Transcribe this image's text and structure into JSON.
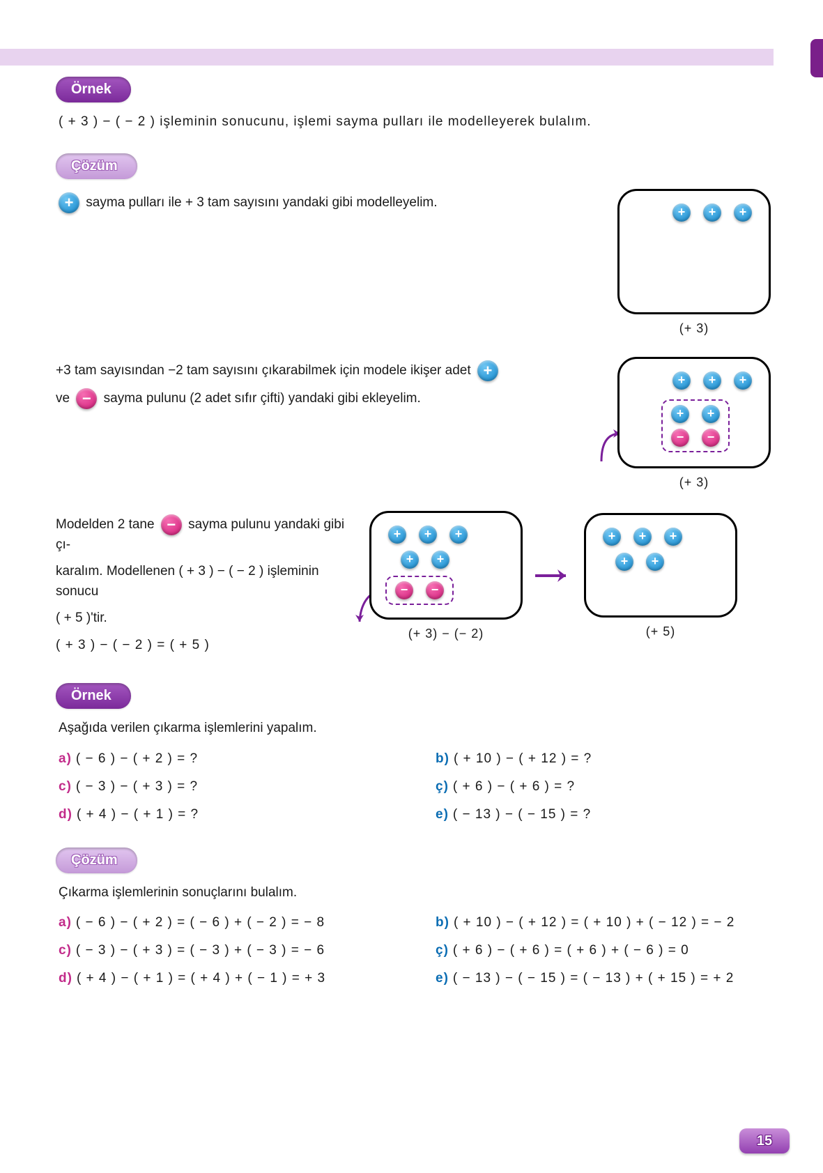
{
  "colors": {
    "accent": "#7a1f8a",
    "topbar": "#e8d3ef",
    "plusChip": "#0f86cc",
    "minusChip": "#d01876",
    "labelPink": "#c22b8a",
    "labelBlue": "#0b6db3"
  },
  "tags": {
    "ornek": "Örnek",
    "cozum": "Çözüm"
  },
  "example1": {
    "prompt": "( + 3 ) − ( − 2 ) işleminin sonucunu, işlemi sayma pulları ile modelleyerek bulalım."
  },
  "step1": {
    "text": "sayma pulları ile + 3 tam sayısını yandaki gibi modelleyelim.",
    "boxLabel": "(+ 3)"
  },
  "step2": {
    "line1": "+3 tam sayısından −2 tam sayısını çıkarabilmek için modele ikişer adet",
    "line2": "sayma pulunu (2 adet sıfır çifti) yandaki gibi ekleyelim.",
    "boxLabel": "(+ 3)",
    "connector": "ve"
  },
  "step3": {
    "line1a": "Modelden 2 tane",
    "line1b": "sayma pulunu yandaki gibi çı-",
    "line2": "karalım. Modellenen ( + 3 ) − ( − 2 ) işleminin sonucu",
    "line3": "( + 5 )'tir.",
    "eq": "( + 3 ) − ( − 2 ) = ( + 5 )",
    "boxLabelL": "(+ 3) − (− 2)",
    "boxLabelR": "(+ 5)"
  },
  "example2": {
    "prompt": "Aşağıda verilen çıkarma işlemlerini yapalım.",
    "items": [
      {
        "l": "a)",
        "t": "( − 6 ) − ( + 2 ) = ?"
      },
      {
        "l": "b)",
        "t": "( + 10 ) − ( + 12 ) = ?"
      },
      {
        "l": "c)",
        "t": "( − 3 ) − ( + 3 ) = ?"
      },
      {
        "l": "ç)",
        "t": "( + 6 ) − ( + 6 ) = ?"
      },
      {
        "l": "d)",
        "t": "( + 4 ) − ( + 1 ) = ?"
      },
      {
        "l": "e)",
        "t": "( − 13 ) − ( − 15 ) = ?"
      }
    ]
  },
  "solution2": {
    "prompt": "Çıkarma işlemlerinin sonuçlarını bulalım.",
    "items": [
      {
        "l": "a)",
        "t": "( − 6 ) − ( + 2 ) = ( − 6 ) + ( − 2 ) = − 8"
      },
      {
        "l": "b)",
        "t": "( + 10 ) − ( + 12 ) = ( + 10 ) + ( − 12 ) = − 2"
      },
      {
        "l": "c)",
        "t": "( − 3 ) − ( + 3 ) = ( − 3 ) + ( − 3 ) = − 6"
      },
      {
        "l": "ç)",
        "t": "( + 6 ) − ( + 6 ) = ( + 6 ) + ( − 6 ) = 0"
      },
      {
        "l": "d)",
        "t": "( + 4 ) − ( + 1 ) = ( + 4 ) + ( − 1 ) = + 3"
      },
      {
        "l": "e)",
        "t": "( − 13 ) − ( − 15 ) = ( − 13 ) + ( + 15 ) = + 2"
      }
    ]
  },
  "pageNumber": "15",
  "diagrams": {
    "box1": {
      "rows": [
        [
          "+",
          "+",
          "+"
        ]
      ]
    },
    "box2": {
      "rows": [
        [
          "+",
          "+",
          "+"
        ]
      ],
      "zeroPair": {
        "plus": [
          "+",
          "+"
        ],
        "minus": [
          "−",
          "−"
        ]
      }
    },
    "box3L": {
      "rows": [
        [
          "+",
          "+",
          "+"
        ],
        [
          "+",
          "+"
        ]
      ],
      "removed": [
        "−",
        "−"
      ]
    },
    "box3R": {
      "rows": [
        [
          "+",
          "+",
          "+"
        ],
        [
          "+",
          "+"
        ]
      ]
    }
  }
}
